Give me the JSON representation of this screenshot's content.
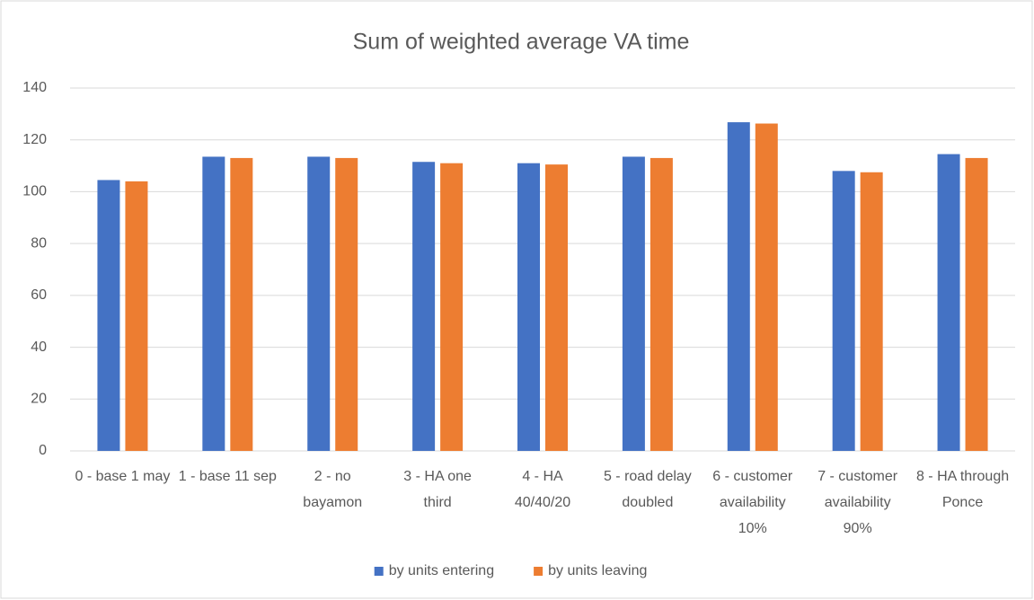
{
  "chart_data": {
    "type": "bar",
    "title": "Sum of weighted average VA time",
    "categories": [
      "0 - base 1 may",
      "1 - base 11 sep",
      "2 - no bayamon",
      "3 - HA one third",
      "4 - HA 40/40/20",
      "5 - road delay doubled",
      "6 - customer availability 10%",
      "7 - customer availability 90%",
      "8 - HA through Ponce"
    ],
    "series": [
      {
        "name": "by units entering",
        "color": "#4472c4",
        "values": [
          104.5,
          113.5,
          113.5,
          111.5,
          111,
          113.5,
          126.8,
          108,
          114.5
        ]
      },
      {
        "name": "by units leaving",
        "color": "#ed7d31",
        "values": [
          104,
          113,
          113,
          111,
          110.5,
          113,
          126.3,
          107.5,
          113
        ]
      }
    ],
    "ylim": [
      0,
      140
    ],
    "yticks": [
      0,
      20,
      40,
      60,
      80,
      100,
      120,
      140
    ],
    "grid": true,
    "legend": "bottom"
  }
}
